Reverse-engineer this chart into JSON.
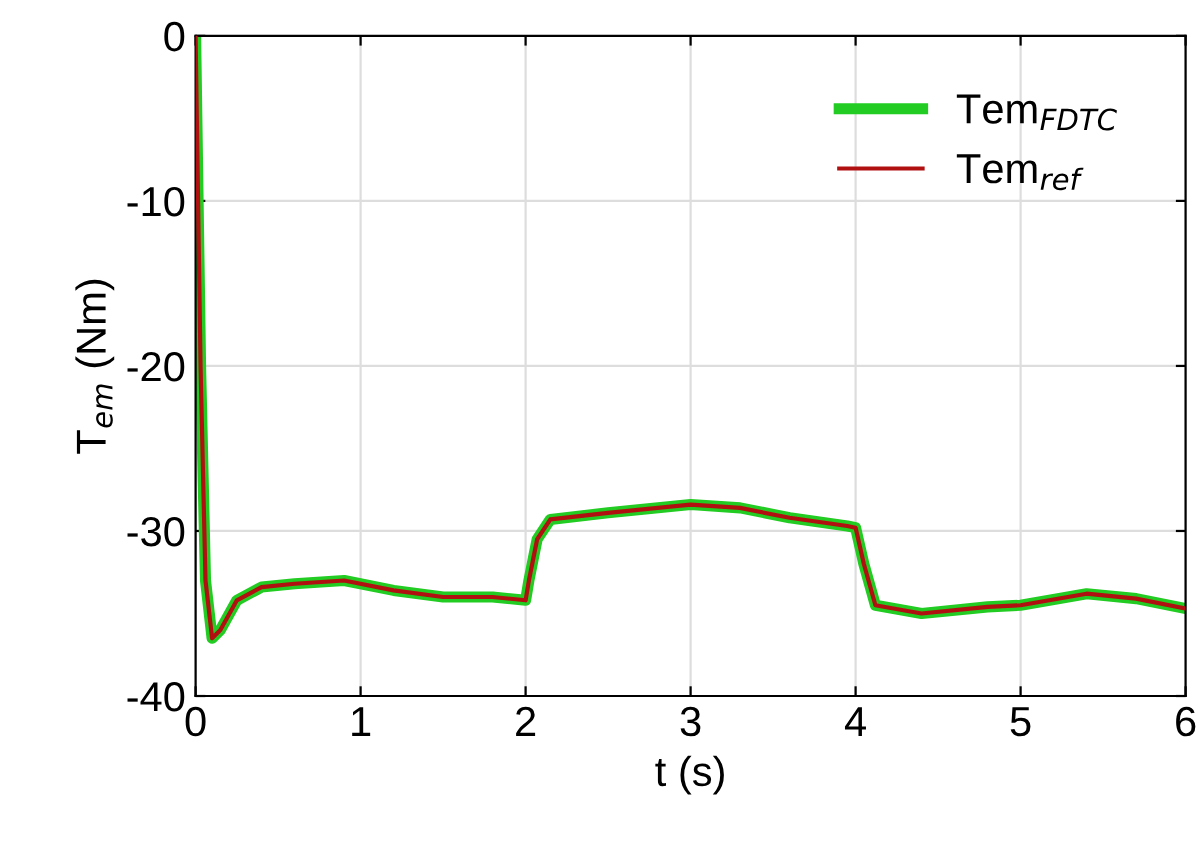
{
  "chart_data": {
    "type": "line",
    "xlabel": "t (s)",
    "ylabel": "T$_{em}$ (Nm)",
    "xlim": [
      0,
      6
    ],
    "ylim": [
      -40,
      0
    ],
    "xticks": [
      0,
      1,
      2,
      3,
      4,
      5,
      6
    ],
    "yticks": [
      -40,
      -30,
      -20,
      -10,
      0
    ],
    "grid": true,
    "legend": "top right",
    "line_style": "solid",
    "marker": "none",
    "series": [
      {
        "name": "Tem$_{FDTC}$",
        "color": "#22cc22",
        "x": [
          0,
          0.03,
          0.06,
          0.1,
          0.15,
          0.25,
          0.4,
          0.6,
          0.9,
          1.2,
          1.5,
          1.8,
          2.0,
          2.02,
          2.07,
          2.15,
          2.5,
          3.0,
          3.3,
          3.6,
          3.95,
          4.0,
          4.05,
          4.12,
          4.4,
          4.8,
          5.0,
          5.4,
          5.7,
          6.0
        ],
        "values": [
          0,
          -20,
          -33,
          -36.5,
          -36,
          -34.2,
          -33.4,
          -33.2,
          -33,
          -33.6,
          -34,
          -34,
          -34.2,
          -33,
          -30.5,
          -29.3,
          -28.9,
          -28.4,
          -28.6,
          -29.2,
          -29.7,
          -29.8,
          -32,
          -34.5,
          -35,
          -34.6,
          -34.5,
          -33.8,
          -34.1,
          -34.7
        ]
      },
      {
        "name": "Tem$_{ref}$",
        "color": "#b01010",
        "x": [
          0,
          0.03,
          0.06,
          0.1,
          0.15,
          0.25,
          0.4,
          0.6,
          0.9,
          1.2,
          1.5,
          1.8,
          2.0,
          2.02,
          2.07,
          2.15,
          2.5,
          3.0,
          3.3,
          3.6,
          3.95,
          4.0,
          4.05,
          4.12,
          4.4,
          4.8,
          5.0,
          5.4,
          5.7,
          6.0
        ],
        "values": [
          0,
          -20,
          -33,
          -36.5,
          -36,
          -34.2,
          -33.4,
          -33.2,
          -33,
          -33.6,
          -34,
          -34,
          -34.2,
          -33,
          -30.5,
          -29.3,
          -28.9,
          -28.4,
          -28.6,
          -29.2,
          -29.7,
          -29.8,
          -32,
          -34.5,
          -35,
          -34.6,
          -34.5,
          -33.8,
          -34.1,
          -34.7
        ]
      }
    ]
  }
}
